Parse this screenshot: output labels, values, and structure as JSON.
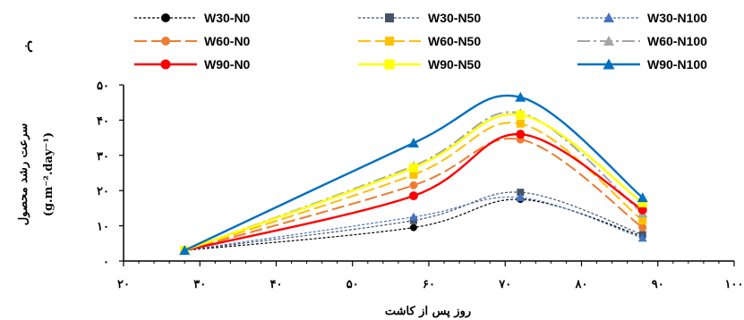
{
  "chart_data": {
    "type": "line",
    "panel_label": "ب",
    "xlabel": "روز پس از کاشت",
    "ylabel": "سرعت رشد محصول",
    "ylabel_unit": "(g.m⁻².day⁻¹)",
    "xlim": [
      20,
      100
    ],
    "ylim": [
      0,
      50
    ],
    "x_ticks": [
      20,
      30,
      40,
      50,
      60,
      70,
      80,
      90,
      100
    ],
    "x_tick_labels": [
      "۲۰",
      "۳۰",
      "۴۰",
      "۵۰",
      "۶۰",
      "۷۰",
      "۸۰",
      "۹۰",
      "۱۰۰"
    ],
    "y_ticks": [
      0,
      10,
      20,
      30,
      40,
      50
    ],
    "y_tick_labels": [
      "۰",
      "۱۰",
      "۲۰",
      "۳۰",
      "۴۰",
      "۵۰"
    ],
    "grid": false,
    "legend_position": "top",
    "x": [
      28,
      58,
      72,
      88
    ],
    "series": [
      {
        "name": "W30-N0",
        "values": [
          3.0,
          9.5,
          17.5,
          7.0
        ],
        "color": "#000000",
        "dash": "3,2",
        "marker": "circle",
        "width": 1.2
      },
      {
        "name": "W30-N50",
        "values": [
          3.0,
          11.5,
          19.5,
          7.5
        ],
        "color": "#44546A",
        "dash": "3,2",
        "marker": "square",
        "width": 1.2
      },
      {
        "name": "W30-N100",
        "values": [
          3.0,
          12.5,
          18.0,
          6.5
        ],
        "color": "#4472C4",
        "dash": "3,2",
        "marker": "triangle",
        "width": 1.2
      },
      {
        "name": "W60-N0",
        "values": [
          3.0,
          21.5,
          34.5,
          9.5
        ],
        "color": "#ED7D31",
        "dash": "14,5",
        "marker": "circle",
        "width": 2
      },
      {
        "name": "W60-N50",
        "values": [
          3.0,
          24.5,
          39.0,
          11.5
        ],
        "color": "#FFC000",
        "dash": "14,5",
        "marker": "square",
        "width": 2
      },
      {
        "name": "W60-N100",
        "values": [
          3.0,
          27.0,
          42.0,
          13.5
        ],
        "color": "#A5A5A5",
        "dash": "14,4,3,4",
        "marker": "triangle",
        "width": 2
      },
      {
        "name": "W90-N0",
        "values": [
          3.0,
          18.5,
          36.0,
          14.5
        ],
        "color": "#FF0000",
        "dash": "",
        "marker": "circle",
        "width": 2.4
      },
      {
        "name": "W90-N50",
        "values": [
          3.0,
          26.5,
          41.5,
          16.5
        ],
        "color": "#FFFF00",
        "dash": "",
        "marker": "square",
        "width": 2.4
      },
      {
        "name": "W90-N100",
        "values": [
          3.0,
          33.5,
          46.5,
          18.0
        ],
        "color": "#0070C0",
        "dash": "",
        "marker": "triangle",
        "width": 2.4
      }
    ]
  }
}
